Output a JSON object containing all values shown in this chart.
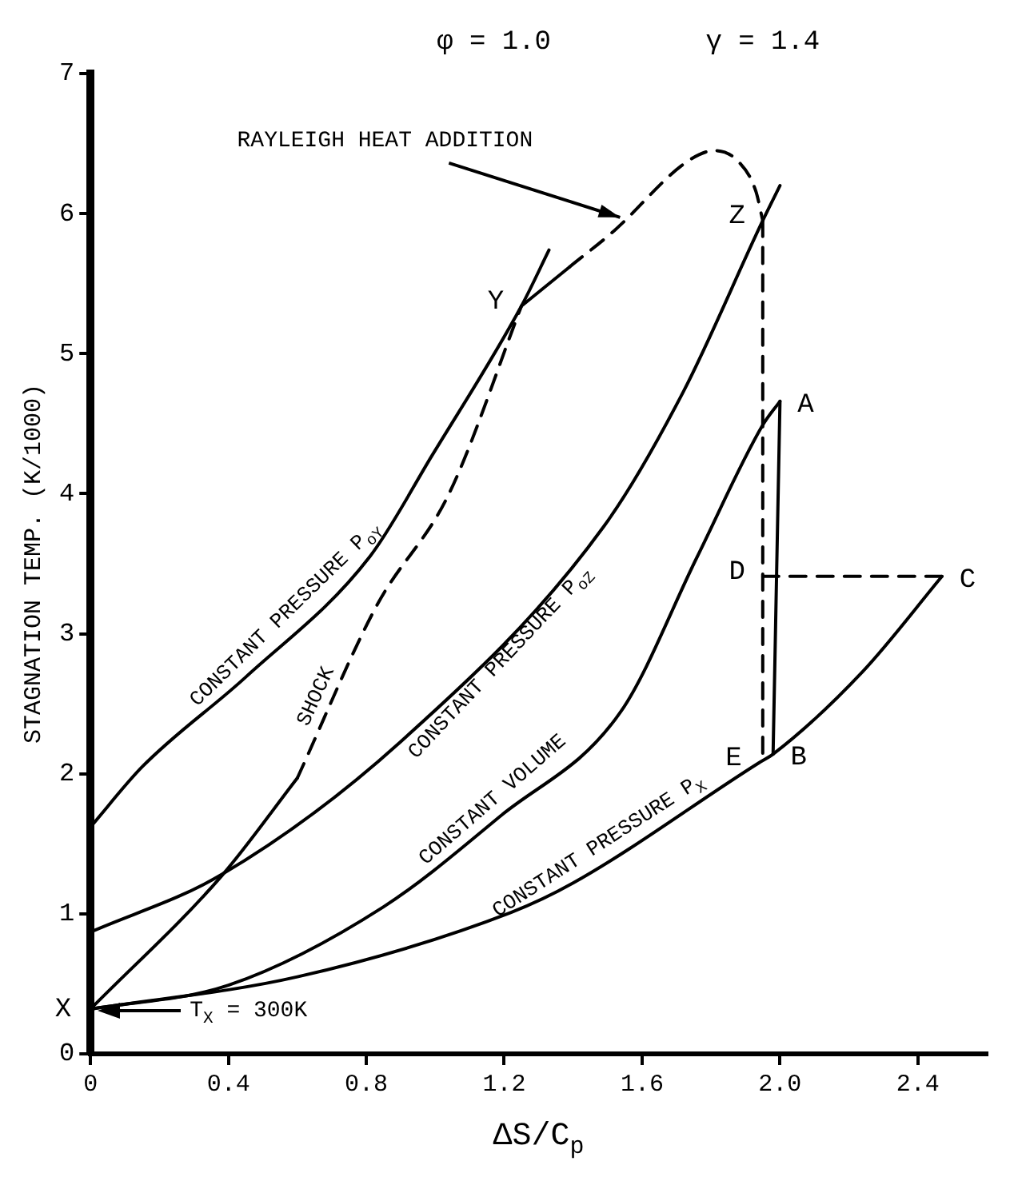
{
  "chart_data": {
    "type": "line",
    "xlabel": "ΔS/C$_{p}$",
    "ylabel": "STAGNATION TEMP. (K/1000)",
    "xlim": [
      0,
      2.6
    ],
    "xticks": [
      0,
      0.4,
      0.8,
      1.2,
      1.6,
      {
        "value": 2,
        "label": "2.0"
      },
      2.4
    ],
    "ylim": [
      0,
      7
    ],
    "yticks": [
      0,
      1,
      2,
      3,
      4,
      5,
      6,
      7
    ],
    "grid": false,
    "marker": "none",
    "series": [
      {
        "color": "#000000",
        "line_style": "solid",
        "x": [
          0,
          0.15,
          0.45,
          0.81,
          0.99,
          1.25,
          1.33
        ],
        "values": [
          1.62,
          2.05,
          2.69,
          3.55,
          4.27,
          5.34,
          5.74
        ]
      },
      {
        "color": "#000000",
        "line_style": "solid",
        "x": [
          0,
          0.38,
          0.6
        ],
        "values": [
          0.32,
          1.27,
          1.97
        ]
      },
      {
        "color": "#000000",
        "line_style": "dashed",
        "x": [
          0.6,
          0.83,
          1.04,
          1.25
        ],
        "values": [
          1.97,
          3.2,
          4.0,
          5.34
        ]
      },
      {
        "color": "#000000",
        "line_style": "solid",
        "x": [
          0,
          0.38,
          0.9,
          1.49,
          1.72,
          1.95,
          2.0
        ],
        "values": [
          0.87,
          1.28,
          2.23,
          3.77,
          4.73,
          5.95,
          6.2
        ]
      },
      {
        "color": "#000000",
        "line_style": "solid",
        "x": [
          0,
          0.4,
          0.85,
          1.19,
          1.54,
          1.76,
          1.95,
          2.0
        ],
        "values": [
          0.32,
          0.49,
          1.05,
          1.7,
          2.45,
          3.55,
          4.49,
          4.66
        ]
      },
      {
        "color": "#000000",
        "line_style": "solid",
        "x": [
          0,
          0.6,
          1.22,
          1.4,
          1.94,
          1.98,
          2.24,
          2.47
        ],
        "values": [
          0.32,
          0.55,
          1.01,
          1.22,
          2.08,
          2.14,
          2.73,
          3.41
        ]
      },
      {
        "color": "#000000",
        "line_style": "solid",
        "x": [
          1.25,
          1.39
        ],
        "values": [
          5.34,
          5.62
        ]
      },
      {
        "color": "#000000",
        "line_style": "dashed",
        "x": [
          1.39,
          1.52,
          1.73,
          1.81,
          1.88,
          1.93,
          1.95
        ],
        "values": [
          5.62,
          5.88,
          6.37,
          6.45,
          6.37,
          6.16,
          5.95
        ]
      },
      {
        "color": "#000000",
        "line_style": "dashed",
        "x": [
          1.95,
          1.95
        ],
        "values": [
          5.95,
          2.08
        ]
      },
      {
        "color": "#000000",
        "line_style": "solid",
        "x": [
          2.0,
          1.98
        ],
        "values": [
          4.66,
          2.14
        ]
      },
      {
        "color": "#000000",
        "line_style": "dashed",
        "x": [
          1.95,
          2.47
        ],
        "values": [
          3.41,
          3.41
        ]
      }
    ],
    "annotations": [
      "φ = 1.0",
      "γ = 1.4",
      {
        "text": "CONSTANT PRESSURE P$_{oY}$",
        "x": 0.6,
        "y": 3.05
      },
      {
        "text": "SHOCK",
        "x": 0.7,
        "y": 2.5
      },
      {
        "text": "CONSTANT PRESSURE P$_{oZ}$",
        "x": 1.15,
        "y": 2.88
      },
      {
        "text": "RAYLEIGH HEAT ADDITION",
        "x": 1.55,
        "y": 5.95
      },
      "T$_{X}$ = 300K",
      {
        "text": "CONSTANT VOLUME",
        "x": 1.2,
        "y": 1.72
      },
      {
        "text": "CONSTANT PRESSURE P$_{X}$",
        "x": 1.5,
        "y": 1.38
      },
      {
        "text": "X",
        "x": 0,
        "y": 0.32
      },
      {
        "text": "Y",
        "x": 1.25,
        "y": 5.34
      },
      {
        "text": "Z",
        "x": 1.95,
        "y": 5.95
      },
      {
        "text": "A",
        "x": 2.0,
        "y": 4.66
      },
      {
        "text": "D",
        "x": 1.95,
        "y": 3.41
      },
      {
        "text": "C",
        "x": 2.47,
        "y": 3.41
      },
      {
        "text": "E",
        "x": 1.94,
        "y": 2.08
      },
      {
        "text": "B",
        "x": 1.98,
        "y": 2.14
      }
    ]
  }
}
